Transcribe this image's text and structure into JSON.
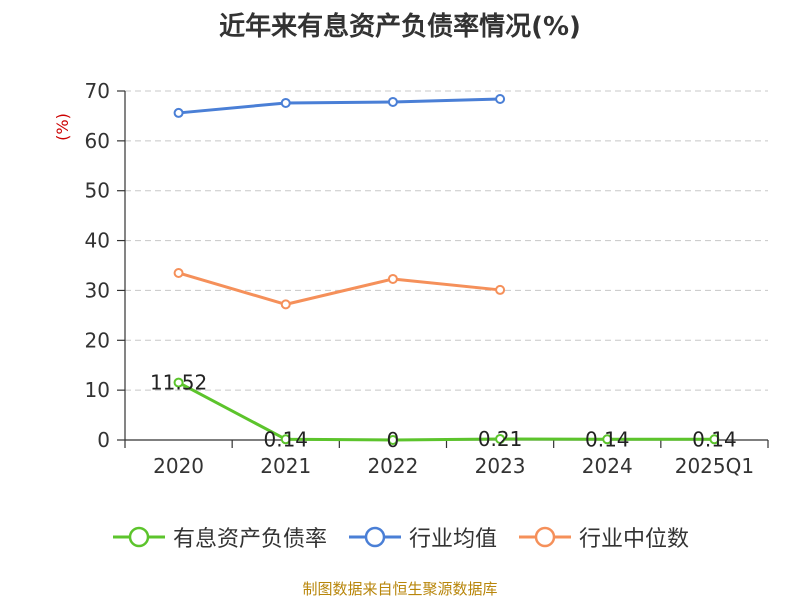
{
  "chart_data": {
    "type": "line",
    "title": "近年来有息资产负债率情况(%)",
    "ylabel": "(%)",
    "xlabel": "",
    "categories": [
      "2020",
      "2021",
      "2022",
      "2023",
      "2024",
      "2025Q1"
    ],
    "ylim": [
      0,
      70
    ],
    "yticks": [
      0,
      10,
      20,
      30,
      40,
      50,
      60,
      70
    ],
    "grid": "horizontal-dashed",
    "legend_position": "bottom",
    "series": [
      {
        "name": "有息资产负债率",
        "color": "#5cc42c",
        "values": [
          11.52,
          0.14,
          0,
          0.21,
          0.14,
          0.14
        ],
        "labels": [
          "11.52",
          "0.14",
          "0",
          "0.21",
          "0.14",
          "0.14"
        ]
      },
      {
        "name": "行业均值",
        "color": "#4a7fd6",
        "values": [
          65.6,
          67.6,
          67.8,
          68.4,
          null,
          null
        ]
      },
      {
        "name": "行业中位数",
        "color": "#f5905a",
        "values": [
          33.5,
          27.2,
          32.3,
          30.1,
          null,
          null
        ]
      }
    ]
  },
  "ylabel_color": "#cc0000",
  "source_text": "制图数据来自恒生聚源数据库",
  "source_color": "#b8860b"
}
